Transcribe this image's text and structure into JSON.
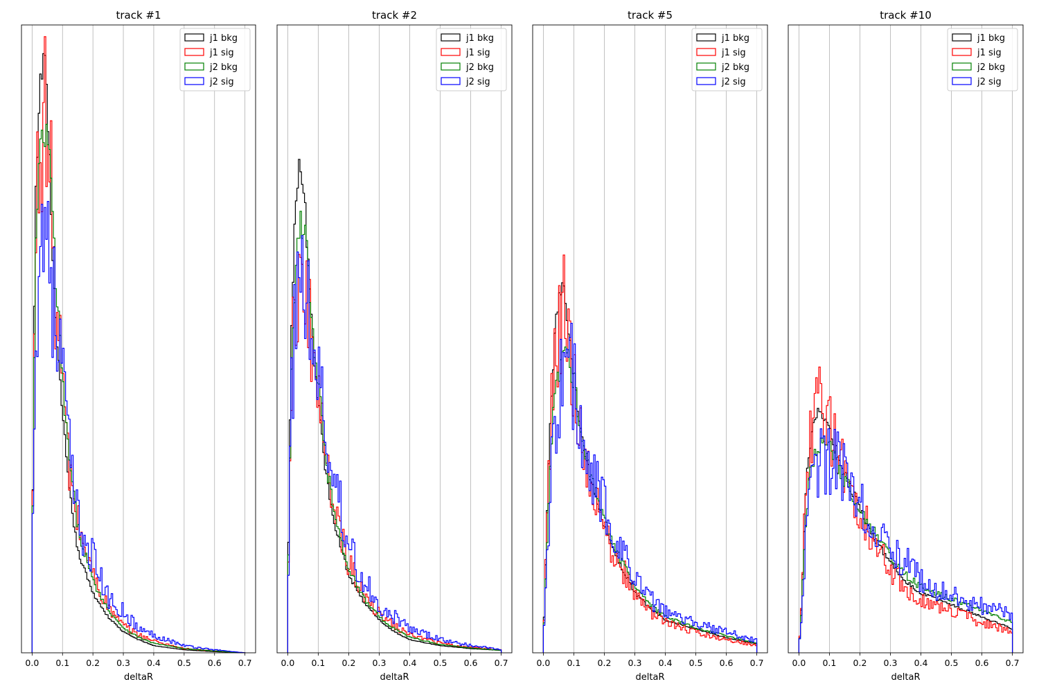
{
  "chart_data": [
    {
      "type": "histogram",
      "title": "track #1",
      "xlabel": "deltaR",
      "ylabel": "",
      "xlim": [
        -0.035,
        0.735
      ],
      "ylim": [
        0,
        1.05
      ],
      "xticks": [
        "0.0",
        "0.1",
        "0.2",
        "0.3",
        "0.4",
        "0.5",
        "0.6",
        "0.7"
      ],
      "grid": "x",
      "legend_position": "upper-right",
      "bin_width": 0.005,
      "series": [
        {
          "name": "j1 bkg",
          "color": "#000000",
          "x": [
            0,
            0.005,
            0.01,
            0.02,
            0.03,
            0.04,
            0.045,
            0.05,
            0.06,
            0.07,
            0.08,
            0.1,
            0.12,
            0.15,
            0.2,
            0.25,
            0.3,
            0.35,
            0.4,
            0.5,
            0.6,
            0.7
          ],
          "values": [
            0.12,
            0.42,
            0.72,
            0.88,
            0.97,
            1.0,
            0.99,
            0.9,
            0.78,
            0.64,
            0.52,
            0.4,
            0.28,
            0.17,
            0.1,
            0.06,
            0.035,
            0.022,
            0.012,
            0.005,
            0.002,
            0.0
          ]
        },
        {
          "name": "j1 sig",
          "color": "#ff0000",
          "x": [
            0,
            0.005,
            0.01,
            0.02,
            0.03,
            0.04,
            0.05,
            0.06,
            0.07,
            0.08,
            0.1,
            0.12,
            0.15,
            0.2,
            0.25,
            0.3,
            0.35,
            0.4,
            0.5,
            0.6,
            0.7
          ],
          "values": [
            0.13,
            0.38,
            0.66,
            0.82,
            0.86,
            0.93,
            0.85,
            0.8,
            0.68,
            0.57,
            0.46,
            0.31,
            0.22,
            0.13,
            0.075,
            0.045,
            0.03,
            0.02,
            0.007,
            0.003,
            0.0
          ]
        },
        {
          "name": "j2 bkg",
          "color": "#008000",
          "x": [
            0,
            0.005,
            0.01,
            0.02,
            0.03,
            0.04,
            0.05,
            0.06,
            0.07,
            0.08,
            0.1,
            0.12,
            0.15,
            0.2,
            0.25,
            0.3,
            0.35,
            0.4,
            0.5,
            0.6,
            0.7
          ],
          "values": [
            0.12,
            0.36,
            0.64,
            0.78,
            0.84,
            0.87,
            0.86,
            0.8,
            0.7,
            0.6,
            0.46,
            0.33,
            0.21,
            0.12,
            0.072,
            0.042,
            0.026,
            0.016,
            0.007,
            0.003,
            0.0
          ]
        },
        {
          "name": "j2 sig",
          "color": "#0000ff",
          "x": [
            0,
            0.005,
            0.01,
            0.02,
            0.03,
            0.04,
            0.05,
            0.06,
            0.07,
            0.08,
            0.1,
            0.12,
            0.15,
            0.2,
            0.25,
            0.3,
            0.35,
            0.4,
            0.5,
            0.6,
            0.7
          ],
          "values": [
            0.12,
            0.3,
            0.56,
            0.62,
            0.72,
            0.7,
            0.76,
            0.66,
            0.6,
            0.52,
            0.48,
            0.34,
            0.22,
            0.16,
            0.09,
            0.07,
            0.04,
            0.03,
            0.012,
            0.005,
            0.0
          ]
        }
      ]
    },
    {
      "type": "histogram",
      "title": "track #2",
      "xlabel": "deltaR",
      "ylabel": "",
      "xlim": [
        -0.035,
        0.735
      ],
      "ylim": [
        0,
        1.05
      ],
      "xticks": [
        "0.0",
        "0.1",
        "0.2",
        "0.3",
        "0.4",
        "0.5",
        "0.6",
        "0.7"
      ],
      "grid": "x",
      "legend_position": "upper-right",
      "bin_width": 0.005,
      "series": [
        {
          "name": "j1 bkg",
          "color": "#000000",
          "x": [
            0,
            0.005,
            0.01,
            0.02,
            0.03,
            0.04,
            0.05,
            0.06,
            0.07,
            0.08,
            0.1,
            0.12,
            0.15,
            0.2,
            0.25,
            0.3,
            0.35,
            0.4,
            0.5,
            0.6,
            0.7
          ],
          "values": [
            0.1,
            0.28,
            0.5,
            0.67,
            0.78,
            0.82,
            0.8,
            0.72,
            0.62,
            0.53,
            0.42,
            0.32,
            0.22,
            0.13,
            0.085,
            0.055,
            0.035,
            0.022,
            0.012,
            0.007,
            0.004
          ]
        },
        {
          "name": "j1 sig",
          "color": "#ff0000",
          "x": [
            0,
            0.005,
            0.01,
            0.02,
            0.03,
            0.04,
            0.05,
            0.06,
            0.07,
            0.08,
            0.1,
            0.12,
            0.15,
            0.2,
            0.25,
            0.3,
            0.35,
            0.4,
            0.5,
            0.6,
            0.7
          ],
          "values": [
            0.1,
            0.25,
            0.44,
            0.56,
            0.6,
            0.64,
            0.62,
            0.6,
            0.56,
            0.5,
            0.44,
            0.33,
            0.24,
            0.15,
            0.1,
            0.065,
            0.045,
            0.03,
            0.016,
            0.009,
            0.005
          ]
        },
        {
          "name": "j2 bkg",
          "color": "#008000",
          "x": [
            0,
            0.005,
            0.01,
            0.02,
            0.03,
            0.04,
            0.05,
            0.06,
            0.07,
            0.08,
            0.1,
            0.12,
            0.15,
            0.2,
            0.25,
            0.3,
            0.35,
            0.4,
            0.5,
            0.6,
            0.7
          ],
          "values": [
            0.1,
            0.24,
            0.44,
            0.58,
            0.66,
            0.7,
            0.72,
            0.7,
            0.63,
            0.55,
            0.45,
            0.34,
            0.24,
            0.14,
            0.092,
            0.06,
            0.04,
            0.026,
            0.014,
            0.008,
            0.004
          ]
        },
        {
          "name": "j2 sig",
          "color": "#0000ff",
          "x": [
            0,
            0.005,
            0.01,
            0.02,
            0.03,
            0.04,
            0.05,
            0.06,
            0.07,
            0.08,
            0.1,
            0.12,
            0.15,
            0.2,
            0.25,
            0.3,
            0.35,
            0.4,
            0.5,
            0.6,
            0.7
          ],
          "values": [
            0.1,
            0.2,
            0.4,
            0.5,
            0.62,
            0.66,
            0.62,
            0.64,
            0.56,
            0.5,
            0.46,
            0.38,
            0.3,
            0.18,
            0.12,
            0.08,
            0.06,
            0.04,
            0.022,
            0.012,
            0.006
          ]
        }
      ]
    },
    {
      "type": "histogram",
      "title": "track #5",
      "xlabel": "deltaR",
      "ylabel": "",
      "xlim": [
        -0.035,
        0.735
      ],
      "ylim": [
        0,
        1.05
      ],
      "xticks": [
        "0.0",
        "0.1",
        "0.2",
        "0.3",
        "0.4",
        "0.5",
        "0.6",
        "0.7"
      ],
      "grid": "x",
      "legend_position": "upper-right",
      "bin_width": 0.005,
      "series": [
        {
          "name": "j1 bkg",
          "color": "#000000",
          "x": [
            0,
            0.005,
            0.01,
            0.02,
            0.03,
            0.04,
            0.05,
            0.06,
            0.07,
            0.08,
            0.1,
            0.12,
            0.15,
            0.2,
            0.25,
            0.3,
            0.35,
            0.4,
            0.5,
            0.6,
            0.7
          ],
          "values": [
            0.02,
            0.1,
            0.2,
            0.36,
            0.46,
            0.54,
            0.58,
            0.6,
            0.61,
            0.56,
            0.47,
            0.38,
            0.3,
            0.21,
            0.15,
            0.1,
            0.075,
            0.055,
            0.04,
            0.025,
            0.015
          ]
        },
        {
          "name": "j1 sig",
          "color": "#ff0000",
          "x": [
            0,
            0.005,
            0.01,
            0.02,
            0.03,
            0.04,
            0.05,
            0.06,
            0.07,
            0.08,
            0.1,
            0.12,
            0.15,
            0.2,
            0.25,
            0.3,
            0.35,
            0.4,
            0.5,
            0.6,
            0.7
          ],
          "values": [
            0.02,
            0.09,
            0.18,
            0.32,
            0.46,
            0.5,
            0.52,
            0.56,
            0.58,
            0.52,
            0.46,
            0.36,
            0.3,
            0.2,
            0.15,
            0.1,
            0.07,
            0.05,
            0.035,
            0.022,
            0.012
          ]
        },
        {
          "name": "j2 bkg",
          "color": "#008000",
          "x": [
            0,
            0.005,
            0.01,
            0.02,
            0.03,
            0.04,
            0.05,
            0.06,
            0.07,
            0.08,
            0.1,
            0.12,
            0.15,
            0.2,
            0.25,
            0.3,
            0.35,
            0.4,
            0.5,
            0.6,
            0.7
          ],
          "values": [
            0.02,
            0.08,
            0.16,
            0.28,
            0.38,
            0.44,
            0.47,
            0.5,
            0.52,
            0.5,
            0.46,
            0.38,
            0.31,
            0.22,
            0.16,
            0.11,
            0.08,
            0.06,
            0.042,
            0.028,
            0.016
          ]
        },
        {
          "name": "j2 sig",
          "color": "#0000ff",
          "x": [
            0,
            0.005,
            0.01,
            0.02,
            0.03,
            0.04,
            0.05,
            0.06,
            0.07,
            0.08,
            0.1,
            0.12,
            0.15,
            0.2,
            0.25,
            0.3,
            0.35,
            0.4,
            0.5,
            0.6,
            0.7
          ],
          "values": [
            0.02,
            0.07,
            0.14,
            0.24,
            0.34,
            0.4,
            0.44,
            0.46,
            0.48,
            0.48,
            0.45,
            0.38,
            0.32,
            0.24,
            0.18,
            0.13,
            0.09,
            0.07,
            0.05,
            0.035,
            0.02
          ]
        }
      ]
    },
    {
      "type": "histogram",
      "title": "track #10",
      "xlabel": "deltaR",
      "ylabel": "",
      "xlim": [
        -0.035,
        0.735
      ],
      "ylim": [
        0,
        1.05
      ],
      "xticks": [
        "0.0",
        "0.1",
        "0.2",
        "0.3",
        "0.4",
        "0.5",
        "0.6",
        "0.7"
      ],
      "grid": "x",
      "legend_position": "upper-right",
      "bin_width": 0.005,
      "series": [
        {
          "name": "j1 bkg",
          "color": "#000000",
          "x": [
            0,
            0.005,
            0.01,
            0.02,
            0.03,
            0.04,
            0.05,
            0.06,
            0.07,
            0.08,
            0.1,
            0.12,
            0.15,
            0.2,
            0.25,
            0.3,
            0.35,
            0.4,
            0.5,
            0.6,
            0.7
          ],
          "values": [
            0.01,
            0.04,
            0.1,
            0.24,
            0.32,
            0.36,
            0.38,
            0.4,
            0.405,
            0.4,
            0.37,
            0.34,
            0.3,
            0.24,
            0.19,
            0.15,
            0.12,
            0.1,
            0.08,
            0.06,
            0.04
          ]
        },
        {
          "name": "j1 sig",
          "color": "#ff0000",
          "x": [
            0,
            0.005,
            0.01,
            0.02,
            0.03,
            0.04,
            0.05,
            0.06,
            0.07,
            0.08,
            0.1,
            0.12,
            0.15,
            0.2,
            0.25,
            0.3,
            0.35,
            0.4,
            0.5,
            0.6,
            0.7
          ],
          "values": [
            0.01,
            0.04,
            0.1,
            0.24,
            0.32,
            0.36,
            0.4,
            0.42,
            0.44,
            0.42,
            0.38,
            0.34,
            0.3,
            0.24,
            0.18,
            0.14,
            0.11,
            0.09,
            0.07,
            0.05,
            0.035
          ]
        },
        {
          "name": "j2 bkg",
          "color": "#008000",
          "x": [
            0,
            0.005,
            0.01,
            0.02,
            0.03,
            0.04,
            0.05,
            0.06,
            0.07,
            0.08,
            0.1,
            0.12,
            0.15,
            0.2,
            0.25,
            0.3,
            0.35,
            0.4,
            0.5,
            0.6,
            0.7
          ],
          "values": [
            0.01,
            0.035,
            0.09,
            0.2,
            0.27,
            0.31,
            0.33,
            0.34,
            0.35,
            0.35,
            0.34,
            0.32,
            0.29,
            0.24,
            0.2,
            0.16,
            0.13,
            0.11,
            0.09,
            0.07,
            0.05
          ]
        },
        {
          "name": "j2 sig",
          "color": "#0000ff",
          "x": [
            0,
            0.005,
            0.01,
            0.02,
            0.03,
            0.04,
            0.05,
            0.06,
            0.07,
            0.08,
            0.1,
            0.12,
            0.15,
            0.2,
            0.25,
            0.3,
            0.35,
            0.4,
            0.5,
            0.6,
            0.7
          ],
          "values": [
            0.01,
            0.03,
            0.08,
            0.17,
            0.24,
            0.28,
            0.3,
            0.31,
            0.32,
            0.33,
            0.33,
            0.32,
            0.3,
            0.26,
            0.22,
            0.18,
            0.15,
            0.12,
            0.1,
            0.08,
            0.06
          ]
        }
      ]
    }
  ]
}
